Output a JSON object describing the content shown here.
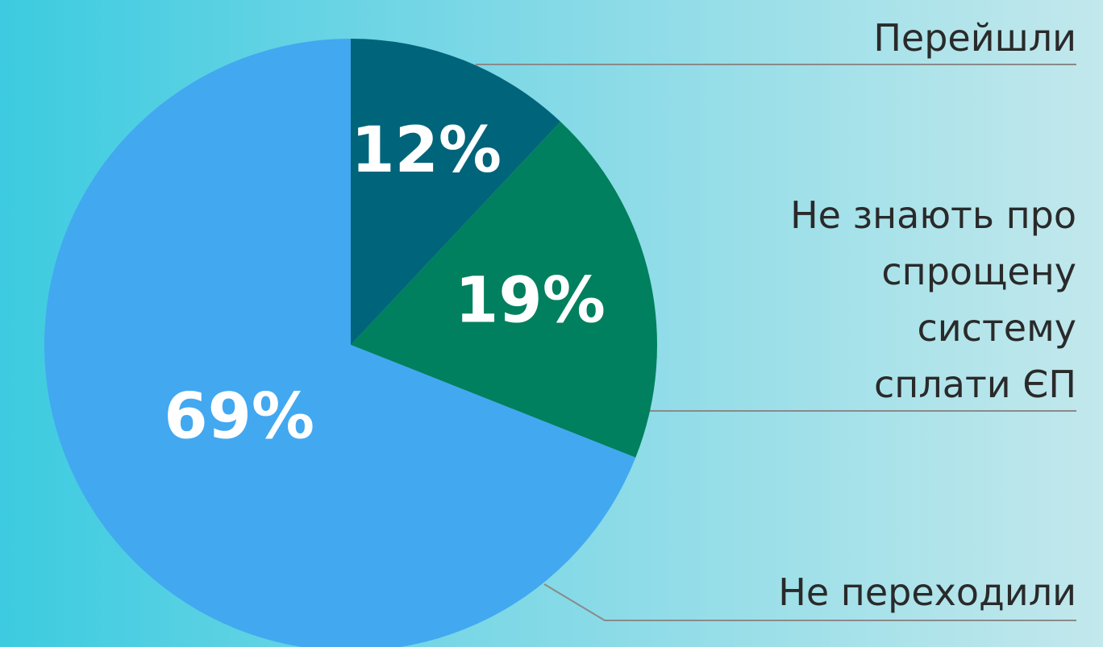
{
  "chart_data": {
    "type": "pie",
    "categories": [
      "Перейшли",
      "Не знають про\nспрощену\nсистему\nсплати ЄП",
      "Не переходили"
    ],
    "values": [
      12,
      19,
      69
    ],
    "value_labels": [
      "12%",
      "19%",
      "69%"
    ],
    "colors": [
      "#00647a",
      "#00805e",
      "#42a8f0"
    ]
  }
}
